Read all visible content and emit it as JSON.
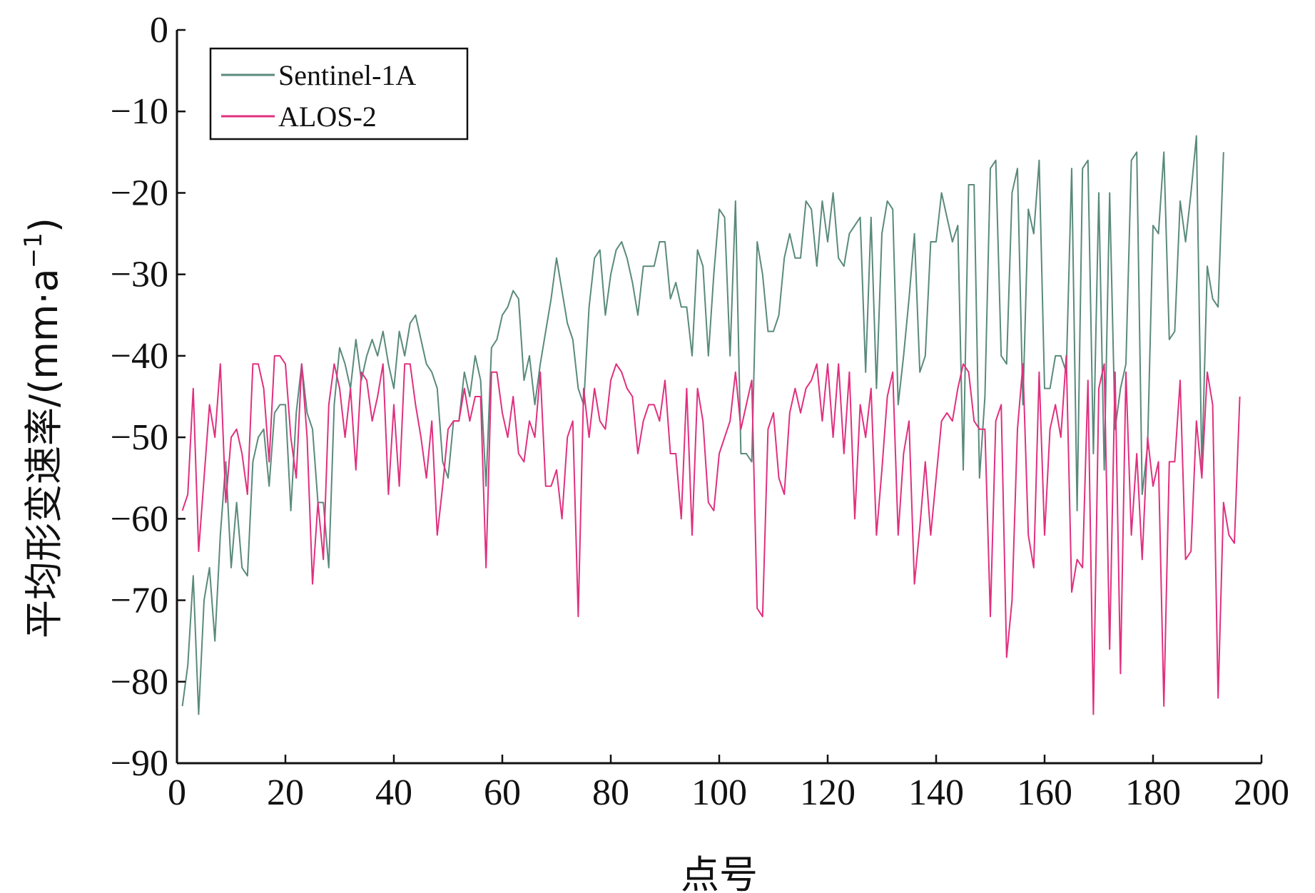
{
  "chart_data": {
    "type": "line",
    "title": "",
    "xlabel": "点号",
    "ylabel": "平均形变速率/(mm·a",
    "ylabel_sup": "−1",
    "ylabel_close": ")",
    "xlim": [
      0,
      200
    ],
    "ylim": [
      -90,
      0
    ],
    "xticks": [
      0,
      20,
      40,
      60,
      80,
      100,
      120,
      140,
      160,
      180,
      200
    ],
    "xtick_labels": [
      "0",
      "20",
      "40",
      "60",
      "80",
      "100",
      "120",
      "140",
      "160",
      "180",
      "200"
    ],
    "yticks": [
      0,
      -10,
      -20,
      -30,
      -40,
      -50,
      -60,
      -70,
      -80,
      -90
    ],
    "ytick_labels": [
      "0",
      "−10",
      "−20",
      "−30",
      "−40",
      "−50",
      "−60",
      "−70",
      "−80",
      "−90"
    ],
    "legend_position": "top-left",
    "series": [
      {
        "name": "Sentinel-1A",
        "color": "#5a8a7c",
        "x_start": 1,
        "values": [
          -83,
          -78,
          -67,
          -84,
          -70,
          -66,
          -75,
          -62,
          -53,
          -66,
          -58,
          -66,
          -67,
          -53,
          -50,
          -49,
          -56,
          -47,
          -46,
          -46,
          -59,
          -47,
          -41,
          -47,
          -49,
          -58,
          -58,
          -66,
          -46,
          -39,
          -41,
          -44,
          -38,
          -43,
          -40,
          -38,
          -40,
          -37,
          -41,
          -44,
          -37,
          -40,
          -36,
          -35,
          -38,
          -41,
          -42,
          -44,
          -53,
          -55,
          -48,
          -48,
          -42,
          -45,
          -40,
          -43,
          -56,
          -39,
          -38,
          -35,
          -34,
          -32,
          -33,
          -43,
          -40,
          -46,
          -41,
          -37,
          -33,
          -28,
          -32,
          -36,
          -38,
          -44,
          -46,
          -34,
          -28,
          -27,
          -35,
          -30,
          -27,
          -26,
          -28,
          -31,
          -35,
          -29,
          -29,
          -29,
          -26,
          -26,
          -33,
          -31,
          -34,
          -34,
          -40,
          -27,
          -29,
          -40,
          -30,
          -22,
          -23,
          -40,
          -21,
          -52,
          -52,
          -53,
          -26,
          -30,
          -37,
          -37,
          -35,
          -28,
          -25,
          -28,
          -28,
          -21,
          -22,
          -29,
          -21,
          -26,
          -20,
          -28,
          -29,
          -25,
          -24,
          -23,
          -42,
          -23,
          -44,
          -25,
          -21,
          -22,
          -46,
          -40,
          -33,
          -25,
          -42,
          -40,
          -26,
          -26,
          -20,
          -23,
          -26,
          -24,
          -54,
          -19,
          -19,
          -55,
          -45,
          -17,
          -16,
          -40,
          -41,
          -20,
          -17,
          -46,
          -22,
          -25,
          -16,
          -44,
          -44,
          -40,
          -40,
          -42,
          -17,
          -59,
          -17,
          -16,
          -52,
          -20,
          -54,
          -20,
          -49,
          -44,
          -41,
          -16,
          -15,
          -57,
          -51,
          -24,
          -25,
          -15,
          -38,
          -37,
          -21,
          -26,
          -20,
          -13,
          -54,
          -29,
          -33,
          -34,
          -15
        ]
      },
      {
        "name": "ALOS-2",
        "color": "#e0307f",
        "x_start": 1,
        "values": [
          -59,
          -57,
          -44,
          -64,
          -55,
          -46,
          -50,
          -41,
          -58,
          -50,
          -49,
          -52,
          -57,
          -41,
          -41,
          -44,
          -53,
          -40,
          -40,
          -41,
          -50,
          -55,
          -41,
          -50,
          -68,
          -58,
          -65,
          -46,
          -41,
          -44,
          -50,
          -44,
          -54,
          -42,
          -43,
          -48,
          -45,
          -41,
          -57,
          -46,
          -56,
          -41,
          -41,
          -46,
          -50,
          -55,
          -48,
          -62,
          -56,
          -49,
          -48,
          -48,
          -44,
          -48,
          -45,
          -45,
          -66,
          -42,
          -42,
          -47,
          -50,
          -45,
          -52,
          -53,
          -48,
          -50,
          -42,
          -56,
          -56,
          -54,
          -60,
          -50,
          -48,
          -72,
          -44,
          -50,
          -44,
          -48,
          -49,
          -43,
          -41,
          -42,
          -44,
          -45,
          -52,
          -48,
          -46,
          -46,
          -48,
          -43,
          -52,
          -52,
          -60,
          -44,
          -62,
          -44,
          -48,
          -58,
          -59,
          -52,
          -50,
          -48,
          -42,
          -49,
          -46,
          -43,
          -71,
          -72,
          -49,
          -47,
          -55,
          -57,
          -47,
          -44,
          -47,
          -44,
          -43,
          -41,
          -48,
          -41,
          -50,
          -41,
          -52,
          -42,
          -60,
          -46,
          -50,
          -44,
          -62,
          -54,
          -45,
          -42,
          -62,
          -52,
          -48,
          -68,
          -61,
          -53,
          -62,
          -55,
          -48,
          -47,
          -48,
          -44,
          -41,
          -42,
          -48,
          -49,
          -49,
          -72,
          -48,
          -46,
          -77,
          -70,
          -49,
          -41,
          -62,
          -66,
          -42,
          -62,
          -49,
          -46,
          -50,
          -40,
          -69,
          -65,
          -66,
          -43,
          -84,
          -44,
          -41,
          -76,
          -42,
          -79,
          -42,
          -62,
          -52,
          -65,
          -50,
          -56,
          -53,
          -83,
          -53,
          -53,
          -43,
          -65,
          -64,
          -48,
          -55,
          -42,
          -46,
          -82,
          -58,
          -62,
          -63,
          -45
        ]
      }
    ]
  }
}
